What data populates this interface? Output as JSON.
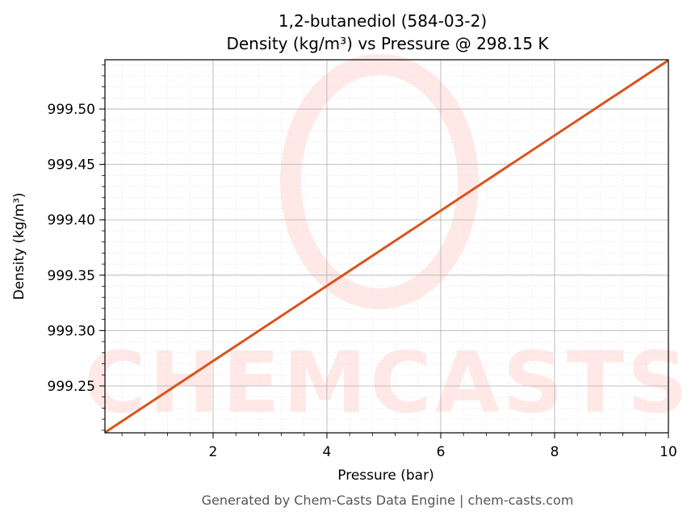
{
  "chart_data": {
    "type": "line",
    "title": "1,2-butanediol (584-03-2)",
    "subtitle": "Density (kg/m³) vs Pressure @ 298.15 K",
    "x_label": "Pressure (bar)",
    "y_label": "Density (kg/m³)",
    "footer": "Generated by Chem-Casts Data Engine | chem-casts.com",
    "watermark": "CHEMCASTS",
    "x": [
      0.1,
      10
    ],
    "series": [
      {
        "name": "Density",
        "color": "#d9541e",
        "values": [
          999.208,
          999.544
        ]
      }
    ],
    "xlim": [
      0.1,
      10
    ],
    "xticks": [
      2,
      4,
      6,
      8,
      10
    ],
    "ylim": [
      999.2077,
      999.5445
    ],
    "yticks": [
      999.25,
      {
        "value": 999.3,
        "label": "999.30"
      },
      999.35,
      {
        "value": 999.4,
        "label": "999.40"
      },
      999.45,
      {
        "value": 999.5,
        "label": "999.50"
      }
    ],
    "grid": true,
    "minor_grid": true
  }
}
